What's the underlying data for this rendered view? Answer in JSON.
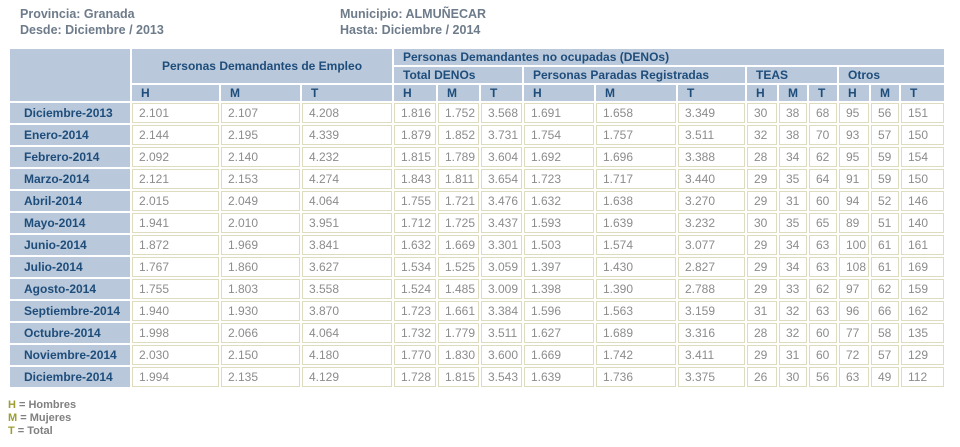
{
  "page_header": {
    "provincia": "Provincia: Granada",
    "desde": "Desde: Diciembre / 2013",
    "municipio": "Municipio: ALMUÑECAR",
    "hasta": "Hasta: Diciembre / 2014"
  },
  "table": {
    "group_demandantes": "Personas Demandantes de Empleo",
    "group_denos": "Personas Demandantes no ocupadas (DENOs)",
    "subgroups": [
      "Total DENOs",
      "Personas Paradas Registradas",
      "TEAS",
      "Otros"
    ],
    "hmt_headers": [
      "H",
      "M",
      "T",
      "H",
      "M",
      "T",
      "H",
      "M",
      "T",
      "H",
      "M",
      "T",
      "H",
      "M",
      "T"
    ],
    "rows": [
      {
        "label": "Diciembre-2013",
        "values": [
          "2.101",
          "2.107",
          "4.208",
          "1.816",
          "1.752",
          "3.568",
          "1.691",
          "1.658",
          "3.349",
          "30",
          "38",
          "68",
          "95",
          "56",
          "151"
        ]
      },
      {
        "label": "Enero-2014",
        "values": [
          "2.144",
          "2.195",
          "4.339",
          "1.879",
          "1.852",
          "3.731",
          "1.754",
          "1.757",
          "3.511",
          "32",
          "38",
          "70",
          "93",
          "57",
          "150"
        ]
      },
      {
        "label": "Febrero-2014",
        "values": [
          "2.092",
          "2.140",
          "4.232",
          "1.815",
          "1.789",
          "3.604",
          "1.692",
          "1.696",
          "3.388",
          "28",
          "34",
          "62",
          "95",
          "59",
          "154"
        ]
      },
      {
        "label": "Marzo-2014",
        "values": [
          "2.121",
          "2.153",
          "4.274",
          "1.843",
          "1.811",
          "3.654",
          "1.723",
          "1.717",
          "3.440",
          "29",
          "35",
          "64",
          "91",
          "59",
          "150"
        ]
      },
      {
        "label": "Abril-2014",
        "values": [
          "2.015",
          "2.049",
          "4.064",
          "1.755",
          "1.721",
          "3.476",
          "1.632",
          "1.638",
          "3.270",
          "29",
          "31",
          "60",
          "94",
          "52",
          "146"
        ]
      },
      {
        "label": "Mayo-2014",
        "values": [
          "1.941",
          "2.010",
          "3.951",
          "1.712",
          "1.725",
          "3.437",
          "1.593",
          "1.639",
          "3.232",
          "30",
          "35",
          "65",
          "89",
          "51",
          "140"
        ]
      },
      {
        "label": "Junio-2014",
        "values": [
          "1.872",
          "1.969",
          "3.841",
          "1.632",
          "1.669",
          "3.301",
          "1.503",
          "1.574",
          "3.077",
          "29",
          "34",
          "63",
          "100",
          "61",
          "161"
        ]
      },
      {
        "label": "Julio-2014",
        "values": [
          "1.767",
          "1.860",
          "3.627",
          "1.534",
          "1.525",
          "3.059",
          "1.397",
          "1.430",
          "2.827",
          "29",
          "34",
          "63",
          "108",
          "61",
          "169"
        ]
      },
      {
        "label": "Agosto-2014",
        "values": [
          "1.755",
          "1.803",
          "3.558",
          "1.524",
          "1.485",
          "3.009",
          "1.398",
          "1.390",
          "2.788",
          "29",
          "33",
          "62",
          "97",
          "62",
          "159"
        ]
      },
      {
        "label": "Septiembre-2014",
        "values": [
          "1.940",
          "1.930",
          "3.870",
          "1.723",
          "1.661",
          "3.384",
          "1.596",
          "1.563",
          "3.159",
          "31",
          "32",
          "63",
          "96",
          "66",
          "162"
        ]
      },
      {
        "label": "Octubre-2014",
        "values": [
          "1.998",
          "2.066",
          "4.064",
          "1.732",
          "1.779",
          "3.511",
          "1.627",
          "1.689",
          "3.316",
          "28",
          "32",
          "60",
          "77",
          "58",
          "135"
        ]
      },
      {
        "label": "Noviembre-2014",
        "values": [
          "2.030",
          "2.150",
          "4.180",
          "1.770",
          "1.830",
          "3.600",
          "1.669",
          "1.742",
          "3.411",
          "29",
          "31",
          "60",
          "72",
          "57",
          "129"
        ]
      },
      {
        "label": "Diciembre-2014",
        "values": [
          "1.994",
          "2.135",
          "4.129",
          "1.728",
          "1.815",
          "3.543",
          "1.639",
          "1.736",
          "3.375",
          "26",
          "30",
          "56",
          "63",
          "49",
          "112"
        ]
      }
    ]
  },
  "legend": [
    {
      "letter": "H",
      "text": " = Hombres"
    },
    {
      "letter": "M",
      "text": " = Mujeres"
    },
    {
      "letter": "T",
      "text": " = Total"
    }
  ],
  "colors": {
    "header_bg": "#b9c8da",
    "header_text": "#1e4d7b",
    "cell_border": "#dedcbe",
    "cell_text": "#8c8c8c",
    "info_text": "#6d7b8a",
    "legend_letter": "#9d9d33"
  }
}
